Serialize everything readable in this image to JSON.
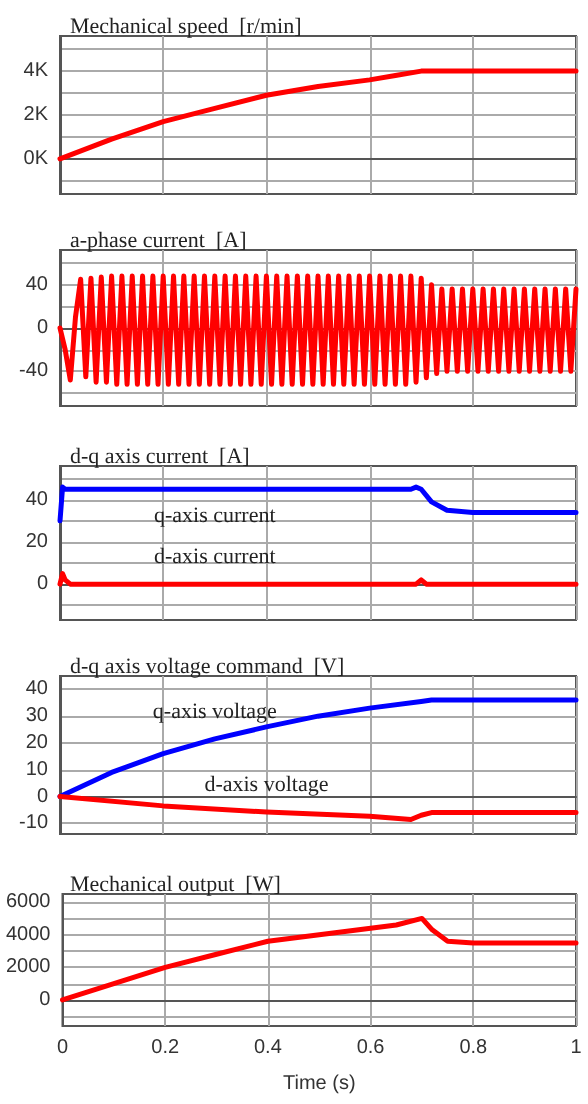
{
  "chart_data": [
    {
      "type": "line",
      "title": "Mechanical speed  [r/min]",
      "xlim": [
        0,
        1
      ],
      "xticks": [
        0,
        0.2,
        0.4,
        0.6,
        0.8,
        1
      ],
      "ylim": [
        -1600,
        5600
      ],
      "yticks": [
        {
          "value": -1000,
          "label": null
        },
        {
          "value": 0,
          "label": "0K"
        },
        {
          "value": 1000,
          "label": null
        },
        {
          "value": 2000,
          "label": "2K"
        },
        {
          "value": 3000,
          "label": null
        },
        {
          "value": 4000,
          "label": "4K"
        },
        {
          "value": 5000,
          "label": null
        }
      ],
      "tick_labels": "y",
      "grid": true,
      "series": [
        {
          "color": "#ff0000",
          "x": [
            0,
            0.1,
            0.2,
            0.3,
            0.4,
            0.5,
            0.6,
            0.65,
            0.7,
            0.72,
            1
          ],
          "values": [
            0,
            900,
            1700,
            2300,
            2900,
            3300,
            3600,
            3800,
            4000,
            4000,
            4000
          ]
        }
      ]
    },
    {
      "type": "line",
      "title": "a-phase current  [A]",
      "xlim": [
        0,
        1
      ],
      "xticks": [
        0,
        0.2,
        0.4,
        0.6,
        0.8,
        1
      ],
      "ylim": [
        -72,
        72
      ],
      "yticks": [
        {
          "value": -60,
          "label": null
        },
        -40,
        {
          "value": -20,
          "label": null
        },
        0,
        {
          "value": 20,
          "label": null
        },
        40,
        {
          "value": 60,
          "label": null
        }
      ],
      "tick_labels": "y",
      "grid": true,
      "series": [
        {
          "color": "#ff0000",
          "x": [
            0,
            0.01,
            0.02,
            0.03,
            0.04,
            0.05,
            0.06,
            0.07,
            0.08,
            0.09,
            0.1,
            0.11,
            0.12,
            0.13,
            0.14,
            0.15,
            0.16,
            0.17,
            0.18,
            0.19,
            0.2,
            0.21,
            0.22,
            0.23,
            0.24,
            0.25,
            0.26,
            0.27,
            0.28,
            0.29,
            0.3,
            0.31,
            0.32,
            0.33,
            0.34,
            0.35,
            0.36,
            0.37,
            0.38,
            0.39,
            0.4,
            0.41,
            0.42,
            0.43,
            0.44,
            0.45,
            0.46,
            0.47,
            0.48,
            0.49,
            0.5,
            0.51,
            0.52,
            0.53,
            0.54,
            0.55,
            0.56,
            0.57,
            0.58,
            0.59,
            0.6,
            0.61,
            0.62,
            0.63,
            0.64,
            0.65,
            0.66,
            0.67,
            0.68,
            0.69,
            0.7,
            0.71,
            0.72,
            0.73,
            0.74,
            0.75,
            0.76,
            0.77,
            0.78,
            0.79,
            0.8,
            0.81,
            0.82,
            0.83,
            0.84,
            0.85,
            0.86,
            0.87,
            0.88,
            0.89,
            0.9,
            0.91,
            0.92,
            0.93,
            0.94,
            0.95,
            0.96,
            0.97,
            0.98,
            0.99,
            1
          ],
          "values": [
            0,
            -20,
            -48,
            10,
            45,
            -45,
            46,
            -50,
            47,
            -50,
            48,
            -52,
            48,
            -52,
            48,
            -52,
            48,
            -52,
            48,
            -52,
            48,
            -52,
            48,
            -52,
            48,
            -52,
            48,
            -52,
            48,
            -52,
            48,
            -52,
            48,
            -52,
            48,
            -52,
            48,
            -52,
            48,
            -52,
            48,
            -52,
            48,
            -52,
            48,
            -52,
            48,
            -52,
            48,
            -52,
            48,
            -52,
            48,
            -52,
            48,
            -52,
            48,
            -52,
            48,
            -52,
            48,
            -52,
            48,
            -52,
            48,
            -52,
            48,
            -52,
            48,
            -50,
            46,
            -46,
            40,
            -42,
            36,
            -40,
            36,
            -40,
            36,
            -40,
            36,
            -40,
            36,
            -40,
            36,
            -40,
            36,
            -40,
            36,
            -40,
            36,
            -40,
            36,
            -40,
            36,
            -40,
            36,
            -40,
            36,
            -40,
            36
          ]
        }
      ]
    },
    {
      "type": "line",
      "title": "d-q axis current  [A]",
      "xlim": [
        0,
        1
      ],
      "xticks": [
        0,
        0.2,
        0.4,
        0.6,
        0.8,
        1
      ],
      "ylim": [
        -17,
        56
      ],
      "yticks": [
        {
          "value": -10,
          "label": null
        },
        0,
        {
          "value": 10,
          "label": null
        },
        20,
        {
          "value": 30,
          "label": null
        },
        40,
        {
          "value": 50,
          "label": null
        }
      ],
      "tick_labels": "y",
      "grid": true,
      "series": [
        {
          "name": "q-axis current",
          "color": "#0000ff",
          "x": [
            0,
            0.005,
            0.01,
            0.1,
            0.3,
            0.5,
            0.68,
            0.69,
            0.7,
            0.72,
            0.75,
            0.8,
            1
          ],
          "values": [
            30,
            46,
            45,
            45,
            45,
            45,
            45,
            46,
            45,
            39,
            35,
            34,
            34
          ]
        },
        {
          "name": "d-axis current",
          "color": "#ff0000",
          "x": [
            0,
            0.005,
            0.01,
            0.02,
            0.3,
            0.69,
            0.7,
            0.71,
            1
          ],
          "values": [
            0,
            5,
            2,
            0,
            0,
            0,
            2,
            0,
            0
          ]
        }
      ]
    },
    {
      "type": "line",
      "title": "d-q axis voltage command  [V]",
      "xlim": [
        0,
        1
      ],
      "xticks": [
        0,
        0.2,
        0.4,
        0.6,
        0.8,
        1
      ],
      "ylim": [
        -14,
        45
      ],
      "yticks": [
        -10,
        0,
        10,
        20,
        30,
        40
      ],
      "tick_labels": "y",
      "grid": true,
      "series": [
        {
          "name": "q-axis voltage",
          "color": "#0000ff",
          "x": [
            0,
            0.1,
            0.2,
            0.3,
            0.4,
            0.5,
            0.6,
            0.7,
            0.72,
            1
          ],
          "values": [
            0,
            9,
            16,
            21.5,
            26,
            30,
            33,
            35.5,
            36,
            36
          ]
        },
        {
          "name": "d-axis voltage",
          "color": "#ff0000",
          "x": [
            0,
            0.2,
            0.4,
            0.6,
            0.68,
            0.7,
            0.72,
            1
          ],
          "values": [
            0,
            -3.5,
            -5.8,
            -7.4,
            -8.6,
            -7,
            -6,
            -6
          ]
        }
      ]
    },
    {
      "type": "line",
      "title": "Mechanical output  [W]",
      "xlabel": "Time (s)",
      "xlim": [
        0,
        1
      ],
      "xticks": [
        0,
        0.2,
        0.4,
        0.6,
        0.8,
        1
      ],
      "ylim": [
        -1600,
        6500
      ],
      "yticks": [
        {
          "value": -1000,
          "label": null
        },
        0,
        {
          "value": 1000,
          "label": null
        },
        2000,
        {
          "value": 3000,
          "label": null
        },
        4000,
        {
          "value": 5000,
          "label": null
        },
        6000
      ],
      "grid": true,
      "series": [
        {
          "color": "#ff0000",
          "x": [
            0,
            0.1,
            0.2,
            0.3,
            0.4,
            0.5,
            0.6,
            0.65,
            0.7,
            0.72,
            0.75,
            0.8,
            1
          ],
          "values": [
            0,
            1000,
            2000,
            2800,
            3600,
            4000,
            4400,
            4600,
            5000,
            4300,
            3600,
            3500,
            3500
          ]
        }
      ]
    }
  ]
}
